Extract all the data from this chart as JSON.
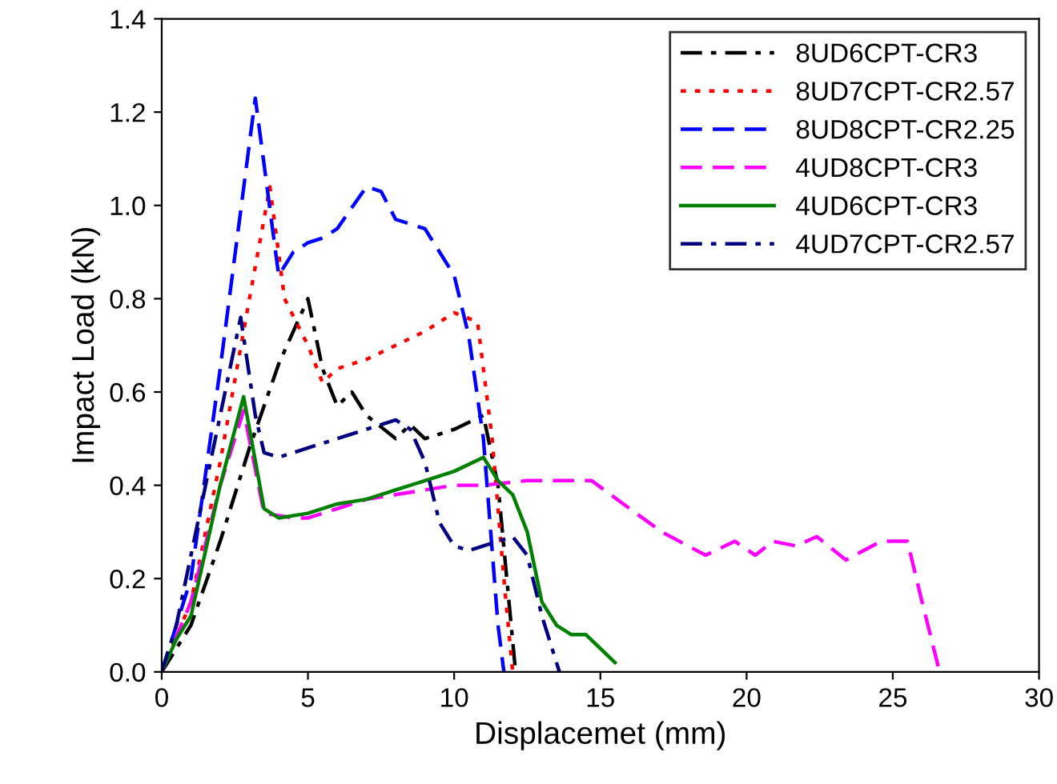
{
  "chart_data": {
    "type": "line",
    "xlabel": "Displacemet (mm)",
    "ylabel": "Impact Load (kN)",
    "xlim": [
      0,
      30
    ],
    "ylim": [
      0,
      1.4
    ],
    "xticks": [
      0,
      5,
      10,
      15,
      20,
      25,
      30
    ],
    "yticks": [
      {
        "value": 0,
        "label": "0.0"
      },
      {
        "value": 0.2,
        "label": "0.2"
      },
      {
        "value": 0.4,
        "label": "0.4"
      },
      {
        "value": 0.6,
        "label": "0.6"
      },
      {
        "value": 0.8,
        "label": "0.8"
      },
      {
        "value": 1.0,
        "label": "1.0"
      },
      {
        "value": 1.2,
        "label": "1.2"
      },
      {
        "value": 1.4,
        "label": "1.4"
      }
    ],
    "grid": false,
    "legend": "top right",
    "marker": "none",
    "series": [
      {
        "name": "8UD6CPT-CR3",
        "color": "#000000",
        "line_style": "dashdot",
        "x": [
          0,
          1,
          2,
          3,
          4,
          5,
          5.5,
          6,
          6.5,
          7,
          8,
          8.5,
          9,
          10,
          11,
          11.5,
          11.8,
          12.1
        ],
        "values": [
          0,
          0.1,
          0.28,
          0.48,
          0.66,
          0.8,
          0.65,
          0.57,
          0.6,
          0.55,
          0.5,
          0.53,
          0.5,
          0.52,
          0.55,
          0.4,
          0.2,
          0
        ]
      },
      {
        "name": "8UD7CPT-CR2.57",
        "color": "#ff0000",
        "line_style": "dotted",
        "x": [
          0,
          1,
          2,
          3,
          3.7,
          4.2,
          5,
          5.5,
          6,
          7,
          8,
          9,
          10,
          10.8,
          11.3,
          11.7,
          12
        ],
        "values": [
          0,
          0.15,
          0.45,
          0.8,
          1.04,
          0.8,
          0.7,
          0.62,
          0.65,
          0.67,
          0.7,
          0.73,
          0.77,
          0.75,
          0.5,
          0.2,
          0
        ]
      },
      {
        "name": "8UD8CPT-CR2.25",
        "color": "#0000ff",
        "line_style": "dashed",
        "x": [
          0,
          0.5,
          1,
          2,
          3.2,
          4,
          4.5,
          5,
          5.5,
          6,
          7,
          7.5,
          8,
          9,
          10,
          10.5,
          11,
          11.5,
          11.7
        ],
        "values": [
          0,
          0.1,
          0.2,
          0.65,
          1.23,
          0.85,
          0.9,
          0.92,
          0.93,
          0.95,
          1.04,
          1.03,
          0.97,
          0.95,
          0.85,
          0.72,
          0.5,
          0.1,
          0
        ]
      },
      {
        "name": "4UD8CPT-CR3",
        "color": "#ff00ff",
        "line_style": "dashed",
        "x": [
          0,
          1,
          2,
          2.8,
          3.5,
          4.5,
          5,
          6,
          7,
          8,
          9,
          10,
          11,
          12.5,
          14.7,
          16,
          17.1,
          18.6,
          19.6,
          20.3,
          20.9,
          21.7,
          22.4,
          23.4,
          24.6,
          25.5,
          26,
          26.6
        ],
        "values": [
          0,
          0.15,
          0.4,
          0.56,
          0.34,
          0.33,
          0.33,
          0.35,
          0.37,
          0.38,
          0.39,
          0.4,
          0.4,
          0.41,
          0.41,
          0.35,
          0.3,
          0.25,
          0.28,
          0.25,
          0.28,
          0.27,
          0.29,
          0.24,
          0.28,
          0.28,
          0.15,
          0
        ]
      },
      {
        "name": "4UD6CPT-CR3",
        "color": "#008000",
        "line_style": "solid",
        "x": [
          0,
          0.5,
          1,
          2,
          2.8,
          3.5,
          4,
          5,
          6,
          7,
          8,
          9,
          10,
          11,
          11.5,
          12,
          12.5,
          13,
          13.5,
          14,
          14.5,
          15,
          15.5
        ],
        "values": [
          0,
          0.07,
          0.12,
          0.4,
          0.59,
          0.35,
          0.33,
          0.34,
          0.36,
          0.37,
          0.39,
          0.41,
          0.43,
          0.46,
          0.41,
          0.38,
          0.3,
          0.15,
          0.1,
          0.08,
          0.08,
          0.05,
          0.02
        ]
      },
      {
        "name": "4UD7CPT-CR2.57",
        "color": "#000080",
        "line_style": "dashdot",
        "x": [
          0,
          0.5,
          1,
          2,
          2.7,
          3.2,
          3.5,
          4,
          5,
          6,
          7,
          8,
          8.5,
          9,
          9.5,
          10,
          10.5,
          11,
          12,
          12.5,
          13,
          13.6
        ],
        "values": [
          0,
          0.1,
          0.25,
          0.55,
          0.76,
          0.55,
          0.47,
          0.46,
          0.48,
          0.5,
          0.52,
          0.54,
          0.52,
          0.45,
          0.32,
          0.27,
          0.26,
          0.27,
          0.29,
          0.25,
          0.12,
          0
        ]
      }
    ]
  }
}
